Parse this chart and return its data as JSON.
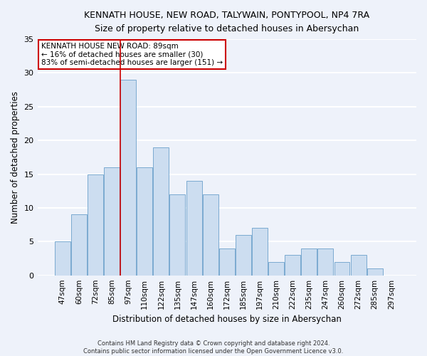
{
  "title": "KENNATH HOUSE, NEW ROAD, TALYWAIN, PONTYPOOL, NP4 7RA",
  "subtitle": "Size of property relative to detached houses in Abersychan",
  "xlabel": "Distribution of detached houses by size in Abersychan",
  "ylabel": "Number of detached properties",
  "bar_color": "#ccddf0",
  "bar_edge_color": "#7aaad0",
  "categories": [
    "47sqm",
    "60sqm",
    "72sqm",
    "85sqm",
    "97sqm",
    "110sqm",
    "122sqm",
    "135sqm",
    "147sqm",
    "160sqm",
    "172sqm",
    "185sqm",
    "197sqm",
    "210sqm",
    "222sqm",
    "235sqm",
    "247sqm",
    "260sqm",
    "272sqm",
    "285sqm",
    "297sqm"
  ],
  "values": [
    5,
    9,
    15,
    16,
    29,
    16,
    19,
    12,
    14,
    12,
    4,
    6,
    7,
    2,
    3,
    4,
    4,
    2,
    3,
    1,
    0
  ],
  "property_line_x": 3.5,
  "annotation_title": "KENNATH HOUSE NEW ROAD: 89sqm",
  "annotation_line1": "← 16% of detached houses are smaller (30)",
  "annotation_line2": "83% of semi-detached houses are larger (151) →",
  "ylim": [
    0,
    35
  ],
  "yticks": [
    0,
    5,
    10,
    15,
    20,
    25,
    30,
    35
  ],
  "footer1": "Contains HM Land Registry data © Crown copyright and database right 2024.",
  "footer2": "Contains public sector information licensed under the Open Government Licence v3.0.",
  "background_color": "#eef2fa",
  "grid_color": "#ffffff",
  "annotation_box_color": "#ffffff",
  "annotation_box_edge": "#cc0000",
  "property_line_color": "#cc0000",
  "figsize": [
    6.0,
    5.0
  ],
  "dpi": 100
}
